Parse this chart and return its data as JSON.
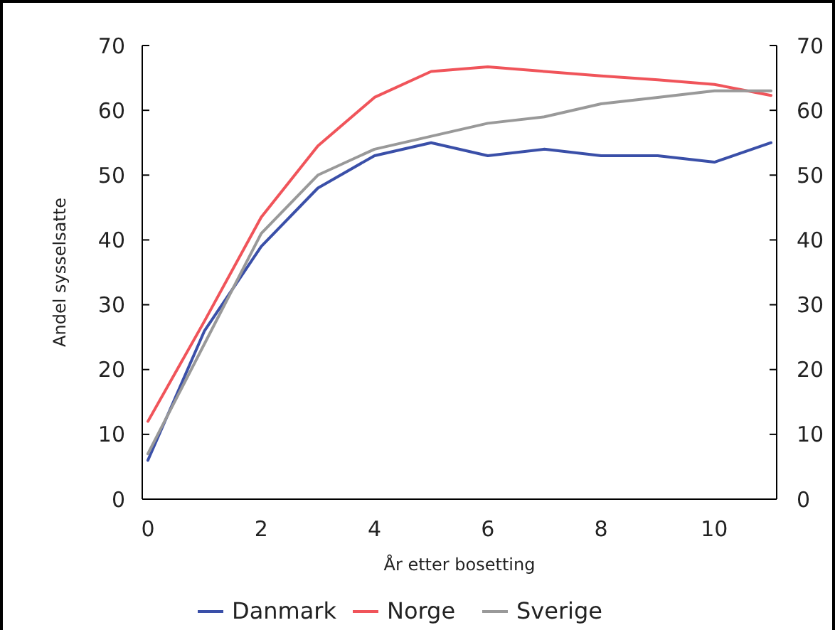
{
  "chart_data": {
    "type": "line",
    "xlabel": "År etter bosetting",
    "ylabel": "Andel sysselsatte",
    "x": [
      0,
      1,
      2,
      3,
      4,
      5,
      6,
      7,
      8,
      9,
      10,
      11
    ],
    "series": [
      {
        "name": "Danmark",
        "color": "#3a4fa8",
        "values": [
          6,
          26,
          39,
          48,
          53,
          55,
          53,
          54,
          53,
          53,
          52,
          55
        ]
      },
      {
        "name": "Norge",
        "color": "#f0545a",
        "values": [
          12,
          27.5,
          43.5,
          54.5,
          62,
          66,
          66.7,
          66,
          65.3,
          64.7,
          64,
          62.3
        ]
      },
      {
        "name": "Sverige",
        "color": "#999999",
        "values": [
          7,
          24,
          41,
          50,
          54,
          56,
          58,
          59,
          61,
          62,
          63,
          63
        ]
      }
    ],
    "xlim": [
      -0.1,
      11.1
    ],
    "xticks": [
      0,
      2,
      4,
      6,
      8,
      10
    ],
    "ylim": [
      0,
      70
    ],
    "yticks": [
      0,
      10,
      20,
      30,
      40,
      50,
      60,
      70
    ],
    "y2lim": [
      0,
      70
    ],
    "y2ticks": [
      0,
      10,
      20,
      30,
      40,
      50,
      60,
      70
    ],
    "grid": false,
    "legend": "bottom",
    "marker": "none",
    "line_style": "solid"
  }
}
